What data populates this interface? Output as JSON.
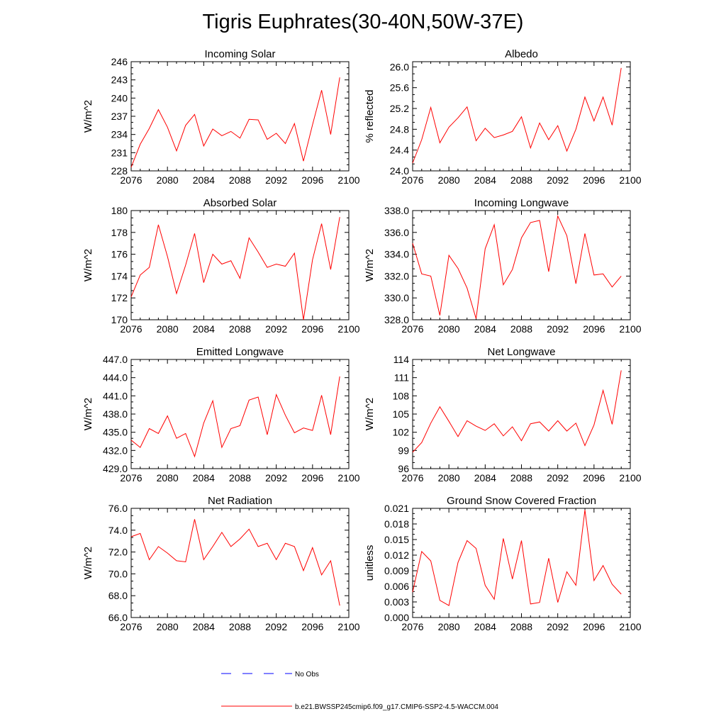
{
  "title": "Tigris Euphrates(30-40N,50W-37E)",
  "colors": {
    "series": "#ff0000",
    "obs": "#0000ff",
    "axis": "#000000"
  },
  "legend": {
    "obs_label": "No Obs",
    "model_label": "b.e21.BWSSP245cmip6.f09_g17.CMIP6-SSP2-4.5-WACCM.004"
  },
  "chart_data": [
    {
      "type": "line",
      "title": "Incoming Solar",
      "ylabel": "W/m^2",
      "xlim": [
        2076,
        2100
      ],
      "ylim": [
        228,
        246
      ],
      "xticks": [
        "2076",
        "2080",
        "2084",
        "2088",
        "2092",
        "2096",
        "2100"
      ],
      "yticks": [
        "228",
        "231",
        "234",
        "237",
        "240",
        "243",
        "246"
      ],
      "series": [
        {
          "x": [
            2076,
            2077,
            2078,
            2079,
            2080,
            2081,
            2082,
            2083,
            2084,
            2085,
            2086,
            2087,
            2088,
            2089,
            2090,
            2091,
            2092,
            2093,
            2094,
            2095,
            2096,
            2097,
            2098,
            2099
          ],
          "values": [
            228.6,
            232.4,
            235.0,
            238.1,
            235.2,
            231.3,
            235.5,
            237.3,
            232.1,
            234.9,
            233.8,
            234.5,
            233.4,
            236.5,
            236.4,
            233.2,
            234.2,
            232.5,
            235.8,
            229.6,
            235.6,
            241.3,
            234.0,
            243.4
          ]
        }
      ]
    },
    {
      "type": "line",
      "title": "Albedo",
      "ylabel": "% reflected",
      "xlim": [
        2076,
        2100
      ],
      "ylim": [
        24.0,
        26.1
      ],
      "xticks": [
        "2076",
        "2080",
        "2084",
        "2088",
        "2092",
        "2096",
        "2100"
      ],
      "yticks": [
        "24.0",
        "24.4",
        "24.8",
        "25.2",
        "25.6",
        "26.0"
      ],
      "series": [
        {
          "x": [
            2076,
            2077,
            2078,
            2079,
            2080,
            2081,
            2082,
            2083,
            2084,
            2085,
            2086,
            2087,
            2088,
            2089,
            2090,
            2091,
            2092,
            2093,
            2094,
            2095,
            2096,
            2097,
            2098,
            2099
          ],
          "values": [
            24.15,
            24.6,
            25.22,
            24.54,
            24.84,
            25.02,
            25.23,
            24.58,
            24.82,
            24.64,
            24.69,
            24.76,
            25.04,
            24.44,
            24.92,
            24.6,
            24.87,
            24.38,
            24.8,
            25.42,
            24.96,
            25.42,
            24.88,
            25.98
          ]
        }
      ]
    },
    {
      "type": "line",
      "title": "Absorbed Solar",
      "ylabel": "W/m^2",
      "xlim": [
        2076,
        2100
      ],
      "ylim": [
        170,
        180
      ],
      "xticks": [
        "2076",
        "2080",
        "2084",
        "2088",
        "2092",
        "2096",
        "2100"
      ],
      "yticks": [
        "170",
        "172",
        "174",
        "176",
        "178",
        "180"
      ],
      "series": [
        {
          "x": [
            2076,
            2077,
            2078,
            2079,
            2080,
            2081,
            2082,
            2083,
            2084,
            2085,
            2086,
            2087,
            2088,
            2089,
            2090,
            2091,
            2092,
            2093,
            2094,
            2095,
            2096,
            2097,
            2098,
            2099
          ],
          "values": [
            172.1,
            174.1,
            174.8,
            178.7,
            175.8,
            172.4,
            175.0,
            177.9,
            173.4,
            176.0,
            175.1,
            175.4,
            173.8,
            177.5,
            176.2,
            174.8,
            175.1,
            174.9,
            176.1,
            170.0,
            175.5,
            178.8,
            174.6,
            179.4
          ]
        }
      ]
    },
    {
      "type": "line",
      "title": "Incoming Longwave",
      "ylabel": "W/m^2",
      "xlim": [
        2076,
        2100
      ],
      "ylim": [
        328.0,
        338.0
      ],
      "xticks": [
        "2076",
        "2080",
        "2084",
        "2088",
        "2092",
        "2096",
        "2100"
      ],
      "yticks": [
        "328.0",
        "330.0",
        "332.0",
        "334.0",
        "336.0",
        "338.0"
      ],
      "series": [
        {
          "x": [
            2076,
            2077,
            2078,
            2079,
            2080,
            2081,
            2082,
            2083,
            2084,
            2085,
            2086,
            2087,
            2088,
            2089,
            2090,
            2091,
            2092,
            2093,
            2094,
            2095,
            2096,
            2097,
            2098,
            2099
          ],
          "values": [
            335.0,
            332.2,
            332.0,
            328.4,
            333.9,
            332.7,
            330.9,
            328.1,
            334.5,
            336.7,
            331.2,
            332.6,
            335.5,
            336.9,
            337.1,
            332.4,
            337.5,
            335.7,
            331.3,
            335.9,
            332.1,
            332.2,
            331.0,
            332.0
          ]
        }
      ]
    },
    {
      "type": "line",
      "title": "Emitted Longwave",
      "ylabel": "W/m^2",
      "xlim": [
        2076,
        2100
      ],
      "ylim": [
        429.0,
        447.0
      ],
      "xticks": [
        "2076",
        "2080",
        "2084",
        "2088",
        "2092",
        "2096",
        "2100"
      ],
      "yticks": [
        "429.0",
        "432.0",
        "435.0",
        "438.0",
        "441.0",
        "444.0",
        "447.0"
      ],
      "series": [
        {
          "x": [
            2076,
            2077,
            2078,
            2079,
            2080,
            2081,
            2082,
            2083,
            2084,
            2085,
            2086,
            2087,
            2088,
            2089,
            2090,
            2091,
            2092,
            2093,
            2094,
            2095,
            2096,
            2097,
            2098,
            2099
          ],
          "values": [
            433.7,
            432.5,
            435.6,
            434.8,
            437.7,
            434.0,
            434.8,
            431.0,
            436.5,
            440.2,
            432.5,
            435.6,
            436.1,
            440.3,
            440.8,
            434.6,
            441.2,
            437.8,
            434.9,
            435.7,
            435.3,
            441.1,
            434.6,
            444.2
          ]
        }
      ]
    },
    {
      "type": "line",
      "title": "Net Longwave",
      "ylabel": "W/m^2",
      "xlim": [
        2076,
        2100
      ],
      "ylim": [
        96,
        114
      ],
      "xticks": [
        "2076",
        "2080",
        "2084",
        "2088",
        "2092",
        "2096",
        "2100"
      ],
      "yticks": [
        "96",
        "99",
        "102",
        "105",
        "108",
        "111",
        "114"
      ],
      "series": [
        {
          "x": [
            2076,
            2077,
            2078,
            2079,
            2080,
            2081,
            2082,
            2083,
            2084,
            2085,
            2086,
            2087,
            2088,
            2089,
            2090,
            2091,
            2092,
            2093,
            2094,
            2095,
            2096,
            2097,
            2098,
            2099
          ],
          "values": [
            98.7,
            100.3,
            103.5,
            106.2,
            103.8,
            101.3,
            103.9,
            103.0,
            102.3,
            103.4,
            101.4,
            102.9,
            100.6,
            103.4,
            103.7,
            102.2,
            103.9,
            102.2,
            103.5,
            99.8,
            103.2,
            108.9,
            103.3,
            112.2
          ]
        }
      ]
    },
    {
      "type": "line",
      "title": "Net Radiation",
      "ylabel": "W/m^2",
      "xlim": [
        2076,
        2100
      ],
      "ylim": [
        66.0,
        76.0
      ],
      "xticks": [
        "2076",
        "2080",
        "2084",
        "2088",
        "2092",
        "2096",
        "2100"
      ],
      "yticks": [
        "66.0",
        "68.0",
        "70.0",
        "72.0",
        "74.0",
        "76.0"
      ],
      "series": [
        {
          "x": [
            2076,
            2077,
            2078,
            2079,
            2080,
            2081,
            2082,
            2083,
            2084,
            2085,
            2086,
            2087,
            2088,
            2089,
            2090,
            2091,
            2092,
            2093,
            2094,
            2095,
            2096,
            2097,
            2098,
            2099
          ],
          "values": [
            73.4,
            73.7,
            71.3,
            72.5,
            71.9,
            71.2,
            71.1,
            75.0,
            71.3,
            72.5,
            73.8,
            72.5,
            73.2,
            74.1,
            72.5,
            72.8,
            71.3,
            72.8,
            72.5,
            70.3,
            72.4,
            69.9,
            71.2,
            67.1
          ]
        }
      ]
    },
    {
      "type": "line",
      "title": "Ground Snow Covered Fraction",
      "ylabel": "unitless",
      "xlim": [
        2076,
        2100
      ],
      "ylim": [
        0.0,
        0.021
      ],
      "xticks": [
        "2076",
        "2080",
        "2084",
        "2088",
        "2092",
        "2096",
        "2100"
      ],
      "yticks": [
        "0.000",
        "0.003",
        "0.006",
        "0.009",
        "0.012",
        "0.015",
        "0.018",
        "0.021"
      ],
      "series": [
        {
          "x": [
            2076,
            2077,
            2078,
            2079,
            2080,
            2081,
            2082,
            2083,
            2084,
            2085,
            2086,
            2087,
            2088,
            2089,
            2090,
            2091,
            2092,
            2093,
            2094,
            2095,
            2096,
            2097,
            2098,
            2099
          ],
          "values": [
            0.0049,
            0.0127,
            0.0109,
            0.0033,
            0.0023,
            0.0106,
            0.0148,
            0.0133,
            0.0062,
            0.0035,
            0.0152,
            0.0074,
            0.0148,
            0.0026,
            0.0029,
            0.0114,
            0.0029,
            0.0088,
            0.0062,
            0.0207,
            0.0071,
            0.01,
            0.0064,
            0.0045
          ]
        }
      ]
    }
  ]
}
